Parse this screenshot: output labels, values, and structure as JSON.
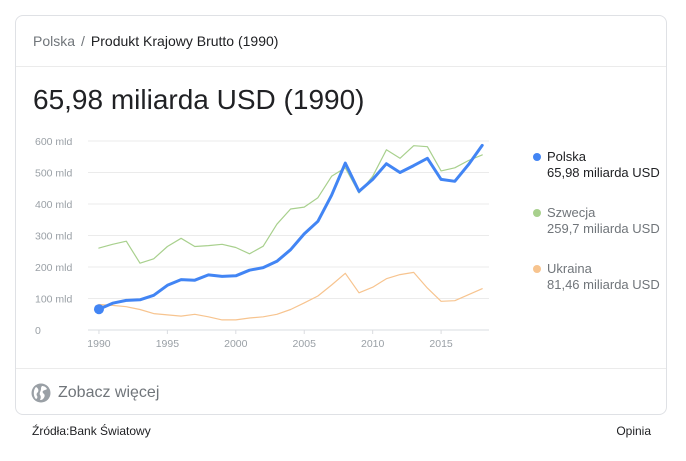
{
  "breadcrumb": {
    "country": "Polska",
    "separator": "/",
    "page": "Produkt Krajowy Brutto (1990)"
  },
  "headline": "65,98 miliarda USD (1990)",
  "legend": [
    {
      "name": "Polska",
      "value": "65,98 miliarda USD",
      "color": "#4285f4"
    },
    {
      "name": "Szwecja",
      "value": "259,7 miliarda USD",
      "color": "#a8d08d"
    },
    {
      "name": "Ukraina",
      "value": "81,46 miliarda USD",
      "color": "#f7c48f"
    }
  ],
  "see_more": "Zobacz więcej",
  "sources": "Źródła:Bank Światowy",
  "feedback": "Opinia",
  "chart_data": {
    "type": "line",
    "x": [
      1990,
      1991,
      1992,
      1993,
      1994,
      1995,
      1996,
      1997,
      1998,
      1999,
      2000,
      2001,
      2002,
      2003,
      2004,
      2005,
      2006,
      2007,
      2008,
      2009,
      2010,
      2011,
      2012,
      2013,
      2014,
      2015,
      2016,
      2017,
      2018
    ],
    "xticks": [
      1990,
      1995,
      2000,
      2005,
      2010,
      2015
    ],
    "yticks": [
      0,
      100,
      200,
      300,
      400,
      500,
      600
    ],
    "ytick_labels": [
      "0",
      "100 mld",
      "200 mld",
      "300 mld",
      "400 mld",
      "500 mld",
      "600 mld"
    ],
    "ylim": [
      0,
      600
    ],
    "xlim": [
      1989.2,
      2018.5
    ],
    "grid": true,
    "legend_position": "right",
    "series": [
      {
        "name": "Polska",
        "color": "#4285f4",
        "values": [
          66,
          85,
          94,
          96,
          110,
          142,
          160,
          158,
          175,
          170,
          172,
          190,
          198,
          218,
          255,
          305,
          345,
          428,
          530,
          440,
          478,
          528,
          500,
          522,
          545,
          478,
          472,
          525,
          586
        ]
      },
      {
        "name": "Szwecja",
        "color": "#a8d08d",
        "values": [
          260,
          272,
          282,
          212,
          226,
          265,
          291,
          265,
          268,
          272,
          262,
          242,
          266,
          336,
          384,
          390,
          420,
          488,
          515,
          435,
          488,
          572,
          545,
          585,
          582,
          505,
          515,
          538,
          556
        ]
      },
      {
        "name": "Ukraina",
        "color": "#f7c48f",
        "values": [
          81,
          78,
          74,
          65,
          52,
          48,
          44,
          50,
          42,
          32,
          32,
          38,
          42,
          50,
          65,
          86,
          108,
          143,
          180,
          118,
          136,
          163,
          176,
          183,
          133,
          91,
          93,
          112,
          131
        ]
      }
    ]
  }
}
